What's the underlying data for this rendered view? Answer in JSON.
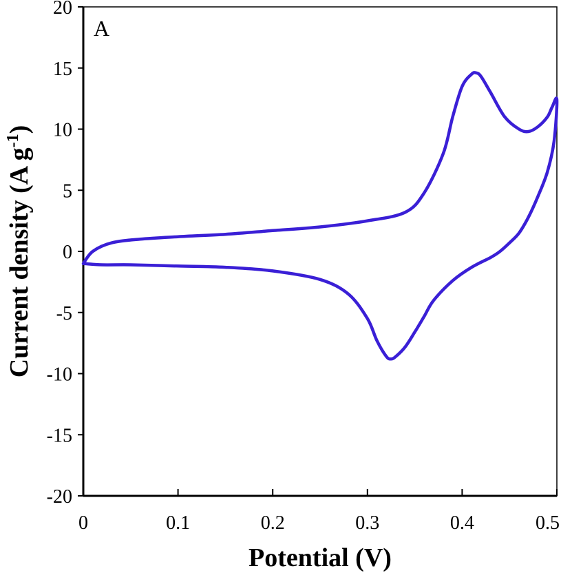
{
  "chart_data": {
    "type": "line",
    "title": "",
    "panel_label": "A",
    "xlabel": "Potential (V)",
    "ylabel_main": "Current density (A g",
    "ylabel_sup": "-1",
    "ylabel_end": ")",
    "xlim": [
      0,
      0.5
    ],
    "ylim": [
      -20,
      20
    ],
    "x_ticks": [
      0,
      0.1,
      0.2,
      0.3,
      0.4,
      0.5
    ],
    "x_tick_labels": [
      "0",
      "0.1",
      "0.2",
      "0.3",
      "0.4",
      "0.5"
    ],
    "y_ticks": [
      -20,
      -15,
      -10,
      -5,
      0,
      5,
      10,
      15,
      20
    ],
    "y_tick_labels": [
      "-20",
      "-15",
      "-10",
      "-5",
      "0",
      "5",
      "10",
      "15",
      "20"
    ],
    "grid": false,
    "line_color": "#3a1fd6",
    "series": [
      {
        "x": [
          0.0,
          0.01,
          0.03,
          0.06,
          0.1,
          0.15,
          0.2,
          0.25,
          0.3,
          0.34,
          0.36,
          0.38,
          0.39,
          0.4,
          0.41,
          0.415,
          0.42,
          0.43,
          0.445,
          0.46,
          0.47,
          0.48,
          0.49,
          0.495,
          0.5,
          0.497,
          0.49,
          0.48,
          0.47,
          0.46,
          0.45,
          0.44,
          0.43,
          0.41,
          0.39,
          0.37,
          0.36,
          0.35,
          0.34,
          0.33,
          0.325,
          0.32,
          0.31,
          0.3,
          0.28,
          0.25,
          0.2,
          0.15,
          0.1,
          0.05,
          0.02,
          0.0
        ],
        "y": [
          -1.0,
          0.0,
          0.7,
          1.0,
          1.2,
          1.4,
          1.7,
          2.0,
          2.5,
          3.2,
          4.8,
          8.0,
          11.0,
          13.5,
          14.5,
          14.6,
          14.3,
          13.0,
          11.0,
          10.0,
          9.8,
          10.2,
          11.0,
          11.8,
          12.4,
          9.0,
          6.5,
          4.5,
          2.8,
          1.5,
          0.7,
          0.0,
          -0.5,
          -1.3,
          -2.4,
          -4.0,
          -5.3,
          -6.6,
          -7.8,
          -8.6,
          -8.8,
          -8.6,
          -7.3,
          -5.5,
          -3.5,
          -2.3,
          -1.6,
          -1.3,
          -1.2,
          -1.1,
          -1.1,
          -1.0
        ]
      }
    ]
  }
}
